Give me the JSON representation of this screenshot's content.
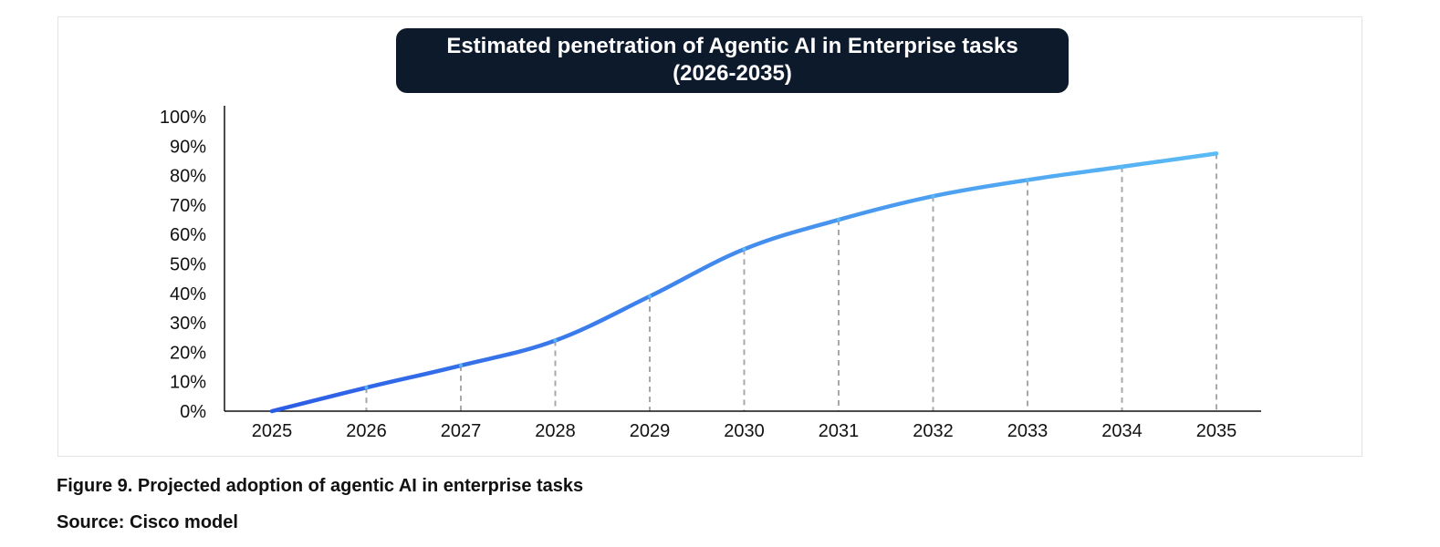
{
  "title": {
    "line1": "Estimated penetration of Agentic AI in Enterprise tasks",
    "line2": "(2026-2035)",
    "background": "#0c1a2b"
  },
  "caption": {
    "figure": "Figure 9. Projected adoption of agentic AI in enterprise tasks",
    "source": "Source: Cisco model"
  },
  "colors": {
    "line_start": "#2b5ce6",
    "line_end": "#5bbcf5",
    "axis": "#111111",
    "dropline": "#a8a8a8"
  },
  "chart_data": {
    "type": "line",
    "title": "Estimated penetration of Agentic AI in Enterprise tasks (2026-2035)",
    "xlabel": "",
    "ylabel": "",
    "x": [
      "2025",
      "2026",
      "2027",
      "2028",
      "2029",
      "2030",
      "2031",
      "2032",
      "2033",
      "2034",
      "2035"
    ],
    "series": [
      {
        "values": [
          0,
          8,
          15.5,
          24,
          39,
          55,
          65,
          73,
          78.5,
          83,
          87.5
        ]
      }
    ],
    "ylim": [
      0,
      100
    ],
    "yticks": [
      "0%",
      "10%",
      "20%",
      "30%",
      "40%",
      "50%",
      "60%",
      "70%",
      "80%",
      "90%",
      "100%"
    ],
    "droplines": true,
    "grid": false,
    "legend": "none"
  }
}
